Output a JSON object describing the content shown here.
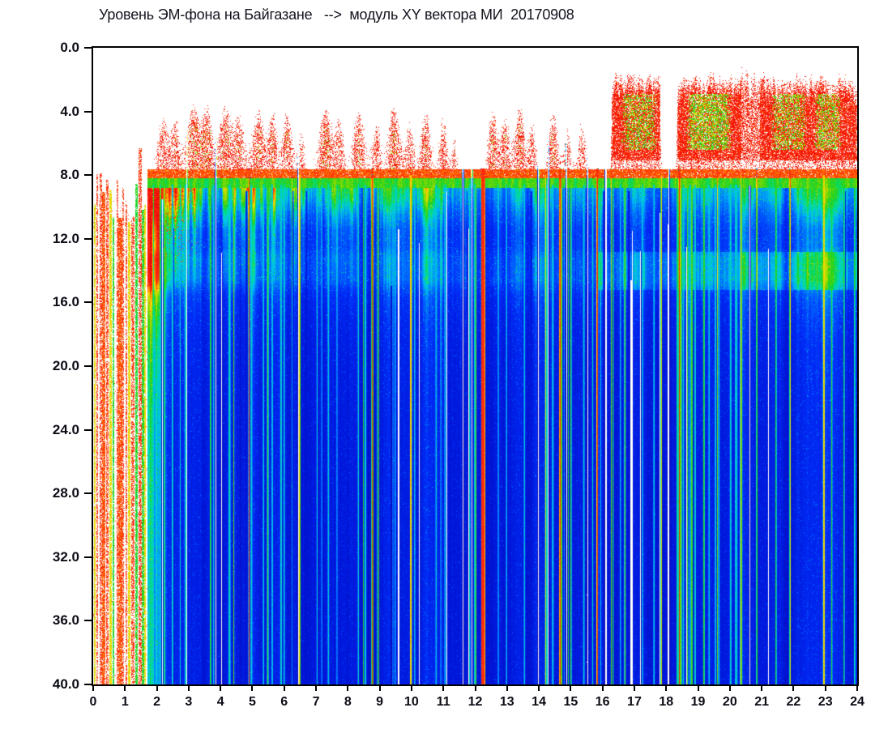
{
  "title": "Уровень ЭМ-фона на Байгазане   -->  модуль XY вектора МИ  20170908",
  "y_axis": {
    "labels": [
      "0.0",
      "4.0",
      "8.0",
      "12.0",
      "16.0",
      "20.0",
      "24.0",
      "28.0",
      "32.0",
      "36.0",
      "40.0"
    ],
    "min": 0,
    "max": 40,
    "step": 4
  },
  "x_axis": {
    "labels": [
      "0",
      "1",
      "2",
      "3",
      "4",
      "5",
      "6",
      "7",
      "8",
      "9",
      "10",
      "11",
      "12",
      "13",
      "14",
      "15",
      "16",
      "17",
      "18",
      "19",
      "20",
      "21",
      "22",
      "23",
      "24"
    ],
    "min": 0,
    "max": 24,
    "step": 1
  },
  "colors": {
    "background": "#ffffff",
    "axis": "#000000",
    "label": "#0c0c16",
    "title": "#14141f",
    "red": "#ff2d0f",
    "yellow": "#ffdf00",
    "green": "#1ed21e",
    "cyan": "#00c3ee",
    "blue": "#002df8",
    "dark_blue": "#0016d8",
    "white_gap": "#ffffff"
  },
  "chart_data": {
    "type": "heatmap",
    "subtype": "spectrogram",
    "title": "Уровень ЭМ-фона на Байгазане --> модуль XY вектора МИ 20170908",
    "station": "Байгазан",
    "date_label": "20170908",
    "xlabel": "",
    "ylabel": "",
    "x_range_hours": [
      0,
      24
    ],
    "y_range": [
      0,
      40
    ],
    "y_direction": "inverted (0.0 at top, 40.0 at bottom)",
    "x_ticks": [
      0,
      1,
      2,
      3,
      4,
      5,
      6,
      7,
      8,
      9,
      10,
      11,
      12,
      13,
      14,
      15,
      16,
      17,
      18,
      19,
      20,
      21,
      22,
      23,
      24
    ],
    "y_ticks": [
      0,
      4,
      8,
      12,
      16,
      20,
      24,
      28,
      32,
      36,
      40
    ],
    "grid": false,
    "legend": false,
    "value_legend": "white = no/lowest signal, blue = low, cyan/green = medium, yellow = high, red = highest",
    "colormap_stops": [
      [
        0.05,
        "#1408aa"
      ],
      [
        0.16,
        "#0016d8"
      ],
      [
        0.28,
        "#002df8"
      ],
      [
        0.38,
        "#0070ff"
      ],
      [
        0.46,
        "#00c3ee"
      ],
      [
        0.52,
        "#00df96"
      ],
      [
        0.58,
        "#1ed21e"
      ],
      [
        0.66,
        "#96dc00"
      ],
      [
        0.73,
        "#ffdf00"
      ],
      [
        0.8,
        "#ff8200"
      ],
      [
        0.87,
        "#ff2d0f"
      ],
      [
        1.0,
        "#ee0a0a"
      ]
    ],
    "depth_intensity_profile": [
      [
        8.78,
        0.46
      ],
      [
        9.5,
        0.43
      ],
      [
        10.5,
        0.36
      ],
      [
        11.5,
        0.31
      ],
      [
        12.5,
        0.31
      ],
      [
        13.2,
        0.35
      ],
      [
        14.6,
        0.35
      ],
      [
        15.6,
        0.28
      ],
      [
        17,
        0.245
      ],
      [
        19,
        0.22
      ],
      [
        24,
        0.2
      ],
      [
        32,
        0.19
      ],
      [
        40,
        0.19
      ]
    ],
    "regions": [
      {
        "hours": [
          0,
          1.7
        ],
        "desc": "start-up: white background with sparse dotted vertical streaks (red/yellow/green/pink) reaching the bottom"
      },
      {
        "hours": [
          1.7,
          16
        ],
        "desc": "continuous blue body below depth ~8.8 with cyan/green vertical streaks; intermittent red speckle bursts at depths 3-7.6; green zone 8.8-15 strongest before 11h"
      },
      {
        "hours": [
          16,
          24
        ],
        "desc": "dense red speckle storm at depths 2-7.6 with yellow-green cores; white noise-hole band 7.1-7.6; smooth dark-blue body below 16 with cyan band 12.8-15.2"
      },
      {
        "hours": [
          1.7,
          24
        ],
        "desc": "persistent red band at depth 7.6-8.2 and green band at 8.2-8.8"
      }
    ],
    "features": {
      "startup_end_hour": 1.7,
      "startup_streaks": [
        {
          "h": 0.05,
          "c": "yellow"
        },
        {
          "h": 0.13,
          "c": "red"
        },
        {
          "h": 0.24,
          "c": "red"
        },
        {
          "h": 0.33,
          "c": "pink",
          "w": 3
        },
        {
          "h": 0.45,
          "c": "red"
        },
        {
          "h": 0.55,
          "c": "yellow"
        },
        {
          "h": 0.64,
          "c": "green"
        },
        {
          "h": 0.76,
          "c": "red"
        },
        {
          "h": 0.85,
          "c": "pink",
          "w": 4
        },
        {
          "h": 0.95,
          "c": "red"
        },
        {
          "h": 1.05,
          "c": "red"
        },
        {
          "h": 1.14,
          "c": "yellow"
        },
        {
          "h": 1.25,
          "c": "red"
        },
        {
          "h": 1.36,
          "c": "green"
        },
        {
          "h": 1.47,
          "c": "red",
          "top": 6.3
        },
        {
          "h": 1.56,
          "c": "green"
        },
        {
          "h": 1.64,
          "c": "yellow"
        }
      ],
      "white_gap_hours": [
        2.93,
        3.85,
        6.45,
        11.62,
        11.9,
        13.98,
        14.29,
        14.87,
        15.53,
        16.1,
        18.09
      ],
      "red_streak_hours": [
        12.25,
        14.67
      ],
      "green_streak_hours": [
        2.24,
        16.33,
        18.35,
        21.45,
        23.2
      ],
      "cluster_bursts": [
        [
          2.2,
          0.45,
          0.18
        ],
        [
          2.6,
          0.4,
          0.12
        ],
        [
          3.15,
          0.55,
          0.2
        ],
        [
          3.6,
          0.5,
          0.15
        ],
        [
          4.15,
          0.55,
          0.18
        ],
        [
          4.6,
          0.45,
          0.15
        ],
        [
          5.2,
          0.5,
          0.2
        ],
        [
          5.65,
          0.45,
          0.12
        ],
        [
          6.1,
          0.5,
          0.15
        ],
        [
          6.55,
          0.35,
          0.1
        ],
        [
          7.3,
          0.55,
          0.2
        ],
        [
          7.75,
          0.4,
          0.12
        ],
        [
          8.35,
          0.5,
          0.18
        ],
        [
          8.9,
          0.4,
          0.12
        ],
        [
          9.45,
          0.55,
          0.18
        ],
        [
          9.95,
          0.4,
          0.12
        ],
        [
          10.45,
          0.5,
          0.15
        ],
        [
          11.0,
          0.45,
          0.12
        ],
        [
          11.35,
          0.3,
          0.08
        ],
        [
          12.55,
          0.5,
          0.15
        ],
        [
          12.95,
          0.45,
          0.12
        ],
        [
          13.4,
          0.55,
          0.15
        ],
        [
          13.8,
          0.4,
          0.1
        ],
        [
          14.45,
          0.5,
          0.15
        ],
        [
          14.9,
          0.35,
          0.1
        ],
        [
          15.35,
          0.4,
          0.12
        ]
      ],
      "storm_windows": [
        [
          16.22,
          17.88
        ],
        [
          18.28,
          24.05
        ]
      ],
      "storm_core_windows": [
        [
          16.55,
          17.75,
          0.5
        ],
        [
          18.6,
          20.1,
          0.68
        ],
        [
          21.25,
          22.45,
          0.5
        ],
        [
          22.6,
          23.55,
          0.55
        ]
      ],
      "bands": {
        "red_band_depth": [
          7.62,
          8.18
        ],
        "green_band_depth": [
          8.18,
          8.78
        ],
        "noise_hole_band_depth": [
          7.08,
          7.62
        ],
        "cyan_band_depth": [
          12.8,
          15.2
        ]
      },
      "random_streak_count": 120
    }
  }
}
